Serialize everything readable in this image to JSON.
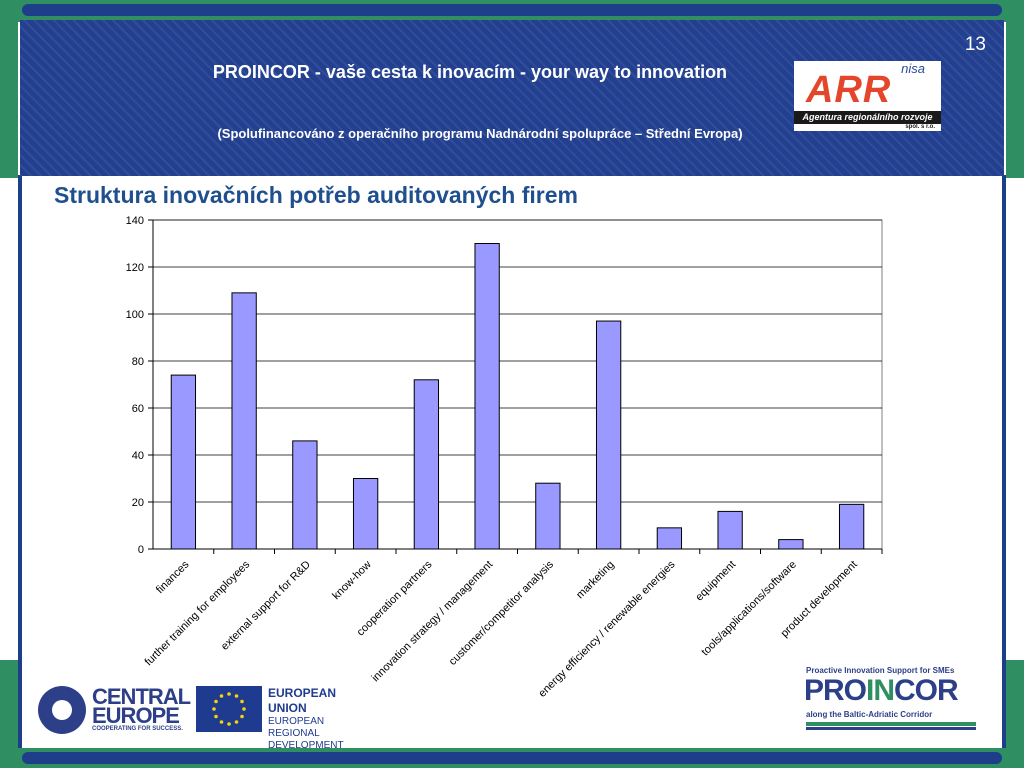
{
  "slide": {
    "number": "13",
    "title": "PROINCOR - vaše cesta k inovacím - your way to innovation",
    "subtitle": "(Spolufinancováno z operačního programu Nadnárodní spolupráce – Střední Evropa)"
  },
  "logos": {
    "arr": {
      "nisa": "nisa",
      "name": "ARR",
      "tagline": "Agentura regionálního rozvoje",
      "suffix": "spol. s r.o."
    },
    "central_europe": {
      "line1": "CENTRAL",
      "line2": "EUROPE",
      "line3": "COOPERATING FOR SUCCESS."
    },
    "eu": {
      "line1": "EUROPEAN UNION",
      "line2": "EUROPEAN REGIONAL",
      "line3": "DEVELOPMENT FUND"
    },
    "proincor": {
      "tagline": "Proactive Innovation Support for SMEs",
      "name_part1": "PRO",
      "name_part2": "IN",
      "name_part3": "COR",
      "subline": "along the Baltic-Adriatic Corridor"
    }
  },
  "chart_data": {
    "type": "bar",
    "title": "Struktura inovačních potřeb auditovaných firem",
    "categories": [
      "finances",
      "further training for employees",
      "external support for R&D",
      "know-how",
      "cooperation partners",
      "innovation strategy / management",
      "customer/competitor analysis",
      "marketing",
      "energy efficiency / renewable energies",
      "equipment",
      "tools/applications/software",
      "product development"
    ],
    "values": [
      74,
      109,
      46,
      30,
      72,
      130,
      28,
      97,
      9,
      16,
      4,
      19
    ],
    "ylim": [
      0,
      140
    ],
    "yticks": [
      0,
      20,
      40,
      60,
      80,
      100,
      120,
      140
    ],
    "grid": true,
    "bar_color": "#9999ff",
    "legend": "none"
  }
}
